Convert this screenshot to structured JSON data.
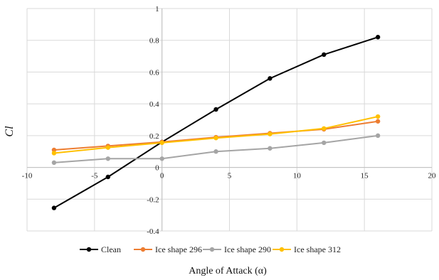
{
  "chart_data": {
    "type": "line",
    "xlabel": "Angle of Attack (α)",
    "ylabel": "Cl",
    "xlim": [
      -10,
      20
    ],
    "ylim": [
      -0.4,
      1
    ],
    "xticks": [
      -10,
      -5,
      0,
      5,
      10,
      15,
      20
    ],
    "yticks": [
      -0.4,
      -0.2,
      0,
      0.2,
      0.4,
      0.6,
      0.8,
      1
    ],
    "xtick_labels": [
      "-10",
      "-5",
      "0",
      "5",
      "10",
      "15",
      "20"
    ],
    "ytick_labels": [
      "-0.4",
      "-0.2",
      "0",
      "0.2",
      "0.4",
      "0.6",
      "0.8",
      "1"
    ],
    "grid": true,
    "legend_position": "bottom",
    "x": [
      -8,
      -4,
      0,
      4,
      8,
      12,
      16
    ],
    "series": [
      {
        "name": "Clean",
        "color": "#000000",
        "values": [
          -0.255,
          -0.06,
          0.16,
          0.365,
          0.56,
          0.71,
          0.82
        ]
      },
      {
        "name": "Ice shape 296",
        "color": "#ed7d31",
        "values": [
          0.11,
          0.135,
          0.16,
          0.19,
          0.215,
          0.24,
          0.29
        ]
      },
      {
        "name": "Ice shape 290",
        "color": "#a5a5a5",
        "values": [
          0.03,
          0.055,
          0.055,
          0.1,
          0.12,
          0.155,
          0.2
        ]
      },
      {
        "name": "Ice shape 312",
        "color": "#ffc000",
        "values": [
          0.09,
          0.125,
          0.155,
          0.185,
          0.21,
          0.245,
          0.32
        ]
      }
    ]
  }
}
